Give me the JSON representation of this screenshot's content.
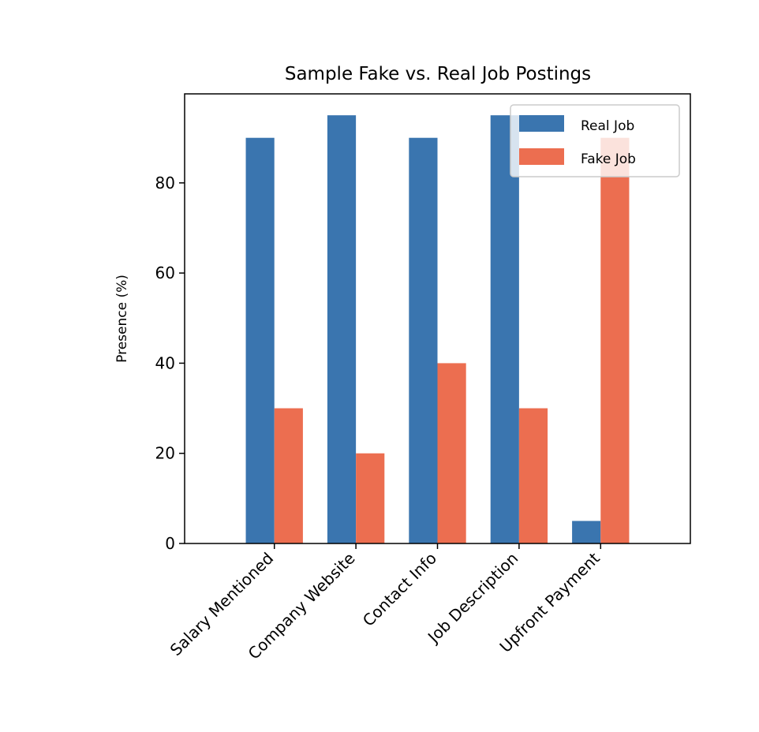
{
  "chart_data": {
    "type": "bar",
    "title": "Sample Fake vs. Real Job Postings",
    "xlabel": "",
    "ylabel": "Presence (%)",
    "categories": [
      "Salary Mentioned",
      "Company Website",
      "Contact Info",
      "Job Description",
      "Upfront Payment"
    ],
    "series": [
      {
        "name": "Real Job",
        "values": [
          90,
          95,
          90,
          95,
          5
        ],
        "color": "#3a75af"
      },
      {
        "name": "Fake Job",
        "values": [
          30,
          20,
          40,
          30,
          90
        ],
        "color": "#ec6e50"
      }
    ],
    "ylim": [
      0,
      99.75
    ],
    "yticks": [
      0,
      20,
      40,
      60,
      80
    ],
    "grid": false,
    "legend_position": "top-right"
  }
}
